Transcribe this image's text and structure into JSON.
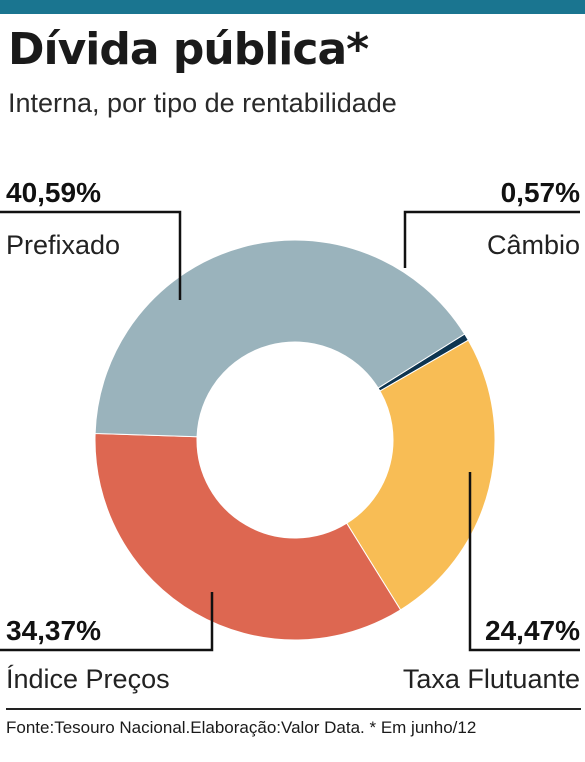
{
  "header": {
    "title": "Dívida pública*",
    "subtitle": "Interna, por tipo de rentabilidade",
    "bar_color": "#1a7590"
  },
  "chart_data": {
    "type": "pie",
    "donut": true,
    "slices": [
      {
        "label": "Câmbio",
        "value": 0.57,
        "value_label": "0,57%",
        "color": "#0e3550"
      },
      {
        "label": "Taxa Flutuante",
        "value": 24.47,
        "value_label": "24,47%",
        "color": "#f8bd55"
      },
      {
        "label": "Índice Preços",
        "value": 34.37,
        "value_label": "34,37%",
        "color": "#dd6751"
      },
      {
        "label": "Prefixado",
        "value": 40.59,
        "value_label": "40,59%",
        "color": "#9ab3bc"
      }
    ]
  },
  "source": "Fonte:Tesouro Nacional.Elaboração:Valor Data. * Em junho/12"
}
